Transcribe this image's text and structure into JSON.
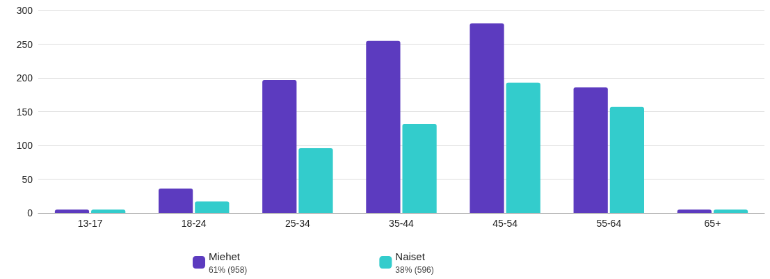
{
  "chart_data": {
    "type": "bar",
    "categories": [
      "13-17",
      "18-24",
      "25-34",
      "35-44",
      "45-54",
      "55-64",
      "65+"
    ],
    "series": [
      {
        "name": "Miehet",
        "color": "#5c3bbf",
        "values": [
          5,
          36,
          197,
          255,
          281,
          186,
          5
        ]
      },
      {
        "name": "Naiset",
        "color": "#33cccc",
        "values": [
          5,
          17,
          96,
          132,
          193,
          157,
          5
        ]
      }
    ],
    "annotations": [
      "61% (958)",
      "38% (596)"
    ],
    "ylim": [
      0,
      300
    ],
    "yticks": [
      0,
      50,
      100,
      150,
      200,
      250,
      300
    ],
    "grid": "y",
    "legend": "bottom"
  }
}
